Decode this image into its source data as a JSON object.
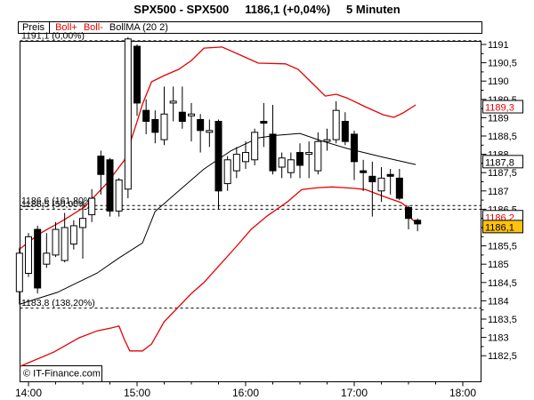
{
  "header": {
    "symbol": "SPX500 - SPX500",
    "quote": "1186,1 (+0,04%)",
    "timeframe": "5 Minuten"
  },
  "legend": {
    "price_label": "Preis",
    "boll_plus": "Boll+",
    "boll_minus": "Boll-",
    "bollma": "BollMA (20 2)"
  },
  "watermark": "© IT-Finance.com",
  "colors": {
    "band_red": "#e60000",
    "current_price_bg": "#ffc20e",
    "text": "#000000",
    "background": "#ffffff"
  },
  "chart_data": {
    "type": "candlestick",
    "indicator": "Bollinger Bands (20,2)",
    "x_axis": {
      "tick_labels": [
        "14:00",
        "15:00",
        "16:00",
        "17:00",
        "18:00"
      ],
      "minor_tick_minutes": 15
    },
    "y_axis": {
      "tick_labels": [
        "1191",
        "1190,5",
        "1190",
        "1189,5",
        "1189",
        "1188,5",
        "1188",
        "1187,5",
        "1187",
        "1186,5",
        "1186",
        "1185,5",
        "1185",
        "1184,5",
        "1184",
        "1183,5",
        "1183",
        "1182,5"
      ],
      "tick_prices": [
        1191,
        1190.5,
        1190,
        1189.5,
        1189,
        1188.5,
        1188,
        1187.5,
        1187,
        1186.5,
        1186,
        1185.5,
        1185,
        1184.5,
        1184,
        1183.5,
        1183,
        1182.5
      ],
      "price_top_border": 1191.1,
      "price_bottom_border": 1181.8,
      "grid": false
    },
    "fib_levels": [
      {
        "price": 1191.1,
        "label": "1191,1 (0,00%)"
      },
      {
        "price": 1186.6,
        "label": "1186,6 (161,80%)"
      },
      {
        "price": 1186.5,
        "label": "1186,5 (50,00%)"
      },
      {
        "price": 1183.8,
        "label": "1183,8 (138,20%)"
      }
    ],
    "price_markers": [
      {
        "value": "1189,3",
        "price": 1189.3,
        "style": "red",
        "note": "upper bollinger band value"
      },
      {
        "value": "1187,8",
        "price": 1187.8,
        "style": "plain",
        "note": "bollinger middle (MA) value"
      },
      {
        "value": "1186,2",
        "price": 1186.2,
        "style": "red-hidden",
        "note": "lower bollinger band value, mostly covered"
      },
      {
        "value": "1186,1",
        "price": 1186.1,
        "style": "current",
        "note": "last price, yellow box"
      }
    ],
    "candles": {
      "columns": [
        "time",
        "open",
        "high",
        "low",
        "close"
      ],
      "rows": [
        [
          "13:55",
          1184.25,
          1185.45,
          1183.9,
          1185.3
        ],
        [
          "14:00",
          1184.75,
          1185.85,
          1184.65,
          1185.75
        ],
        [
          "14:05",
          1185.95,
          1186.05,
          1184.2,
          1184.35
        ],
        [
          "14:10",
          1185.0,
          1185.85,
          1184.9,
          1185.3
        ],
        [
          "14:15",
          1185.25,
          1186.15,
          1185.2,
          1185.95
        ],
        [
          "14:20",
          1185.1,
          1186.4,
          1185.05,
          1186.0
        ],
        [
          "14:25",
          1185.55,
          1186.2,
          1185.4,
          1186.05
        ],
        [
          "14:30",
          1186.0,
          1186.75,
          1185.15,
          1186.25
        ],
        [
          "14:35",
          1186.35,
          1187.05,
          1186.15,
          1186.8
        ],
        [
          "14:40",
          1187.95,
          1188.1,
          1186.9,
          1187.45
        ],
        [
          "14:45",
          1187.85,
          1187.9,
          1186.3,
          1186.45
        ],
        [
          "14:50",
          1186.45,
          1187.35,
          1186.3,
          1187.3
        ],
        [
          "14:55",
          1187.05,
          1191.2,
          1186.8,
          1191.15
        ],
        [
          "15:00",
          1190.95,
          1191.0,
          1189.05,
          1189.4
        ],
        [
          "15:05",
          1189.2,
          1189.5,
          1188.55,
          1188.9
        ],
        [
          "15:10",
          1188.95,
          1189.2,
          1188.3,
          1188.6
        ],
        [
          "15:15",
          1188.4,
          1189.85,
          1188.25,
          1189.1
        ],
        [
          "15:20",
          1189.4,
          1189.85,
          1188.9,
          1189.45
        ],
        [
          "15:25",
          1189.15,
          1189.85,
          1188.7,
          1188.9
        ],
        [
          "15:30",
          1189.05,
          1189.4,
          1188.35,
          1189.1
        ],
        [
          "15:35",
          1188.95,
          1189.1,
          1188.05,
          1188.65
        ],
        [
          "15:40",
          1188.6,
          1188.95,
          1188.2,
          1188.65
        ],
        [
          "15:45",
          1188.9,
          1188.95,
          1186.5,
          1187.0
        ],
        [
          "15:50",
          1187.2,
          1187.95,
          1187.0,
          1187.85
        ],
        [
          "15:55",
          1187.55,
          1188.2,
          1187.35,
          1188.0
        ],
        [
          "16:00",
          1187.8,
          1188.35,
          1187.6,
          1188.05
        ],
        [
          "16:05",
          1187.85,
          1188.7,
          1187.7,
          1188.6
        ],
        [
          "16:10",
          1188.9,
          1189.4,
          1188.2,
          1188.85
        ],
        [
          "16:15",
          1188.55,
          1189.35,
          1187.45,
          1187.55
        ],
        [
          "16:20",
          1187.65,
          1188.05,
          1187.35,
          1187.9
        ],
        [
          "16:25",
          1187.5,
          1188.05,
          1187.35,
          1187.85
        ],
        [
          "16:30",
          1188.05,
          1188.3,
          1187.35,
          1187.7
        ],
        [
          "16:35",
          1188.0,
          1188.35,
          1187.35,
          1188.05
        ],
        [
          "16:40",
          1187.55,
          1188.6,
          1187.45,
          1188.35
        ],
        [
          "16:45",
          1188.35,
          1188.7,
          1188.1,
          1188.4
        ],
        [
          "16:50",
          1188.4,
          1189.45,
          1188.3,
          1189.2
        ],
        [
          "16:55",
          1188.9,
          1189.15,
          1188.25,
          1188.35
        ],
        [
          "17:00",
          1188.55,
          1188.65,
          1187.3,
          1187.8
        ],
        [
          "17:05",
          1187.55,
          1187.85,
          1187.0,
          1187.5
        ],
        [
          "17:10",
          1187.4,
          1187.8,
          1186.3,
          1187.25
        ],
        [
          "17:15",
          1187.0,
          1187.65,
          1186.7,
          1187.35
        ],
        [
          "17:20",
          1187.45,
          1187.6,
          1186.9,
          1187.4
        ],
        [
          "17:25",
          1187.35,
          1187.6,
          1186.75,
          1186.8
        ],
        [
          "17:30",
          1186.55,
          1186.6,
          1185.95,
          1186.25
        ],
        [
          "17:35",
          1186.2,
          1186.25,
          1185.9,
          1186.1
        ]
      ]
    },
    "bollinger_upper": {
      "t_unit": "minutes_from_14:00",
      "points": [
        [
          -6,
          1185.42
        ],
        [
          6,
          1185.83
        ],
        [
          19,
          1186.19
        ],
        [
          31,
          1186.56
        ],
        [
          43,
          1187.19
        ],
        [
          53,
          1187.84
        ],
        [
          60,
          1188.89
        ],
        [
          63,
          1189.37
        ],
        [
          68,
          1189.98
        ],
        [
          75,
          1190.15
        ],
        [
          83,
          1190.32
        ],
        [
          90,
          1190.56
        ],
        [
          97,
          1190.9
        ],
        [
          107,
          1190.93
        ],
        [
          117,
          1190.71
        ],
        [
          127,
          1190.49
        ],
        [
          142,
          1190.47
        ],
        [
          149,
          1190.32
        ],
        [
          156,
          1189.98
        ],
        [
          164,
          1189.59
        ],
        [
          170,
          1189.64
        ],
        [
          176,
          1189.54
        ],
        [
          186,
          1189.3
        ],
        [
          196,
          1189.08
        ],
        [
          202,
          1189.01
        ],
        [
          207,
          1189.13
        ],
        [
          214,
          1189.35
        ]
      ]
    },
    "bollinger_lower": {
      "t_unit": "minutes_from_14:00",
      "points": [
        [
          -6,
          1182.21
        ],
        [
          14,
          1182.6
        ],
        [
          28,
          1182.99
        ],
        [
          38,
          1183.18
        ],
        [
          46,
          1183.26
        ],
        [
          50,
          1183.31
        ],
        [
          53,
          1182.94
        ],
        [
          56,
          1182.63
        ],
        [
          63,
          1182.63
        ],
        [
          68,
          1182.82
        ],
        [
          75,
          1183.43
        ],
        [
          83,
          1183.84
        ],
        [
          90,
          1184.2
        ],
        [
          97,
          1184.5
        ],
        [
          107,
          1185.05
        ],
        [
          115,
          1185.49
        ],
        [
          123,
          1185.95
        ],
        [
          132,
          1186.32
        ],
        [
          143,
          1186.7
        ],
        [
          151,
          1187.04
        ],
        [
          160,
          1187.09
        ],
        [
          168,
          1187.11
        ],
        [
          180,
          1187.07
        ],
        [
          186,
          1187.04
        ],
        [
          199,
          1186.8
        ],
        [
          206,
          1186.68
        ],
        [
          209,
          1186.56
        ],
        [
          212,
          1186.22
        ],
        [
          214,
          1186.15
        ]
      ]
    },
    "bollinger_ma": {
      "t_unit": "minutes_from_14:00",
      "points": [
        [
          -6,
          1183.91
        ],
        [
          16,
          1184.23
        ],
        [
          38,
          1184.76
        ],
        [
          50,
          1185.17
        ],
        [
          63,
          1185.58
        ],
        [
          70,
          1186.44
        ],
        [
          83,
          1187.0
        ],
        [
          97,
          1187.6
        ],
        [
          112,
          1188.1
        ],
        [
          127,
          1188.45
        ],
        [
          137,
          1188.52
        ],
        [
          150,
          1188.57
        ],
        [
          161,
          1188.38
        ],
        [
          176,
          1188.16
        ],
        [
          196,
          1187.92
        ],
        [
          214,
          1187.72
        ]
      ]
    }
  }
}
